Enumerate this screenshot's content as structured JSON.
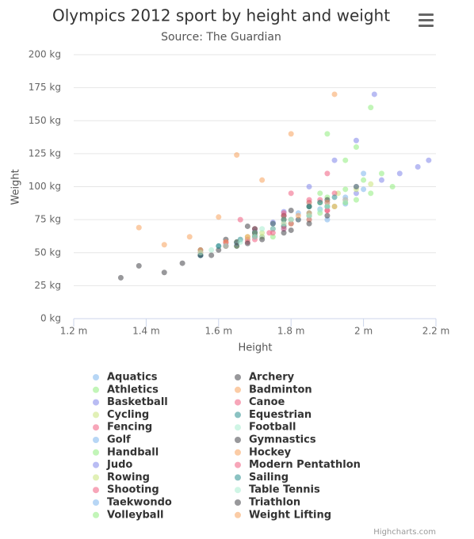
{
  "chart_data": {
    "type": "scatter",
    "title": "Olympics 2012 sport by height and weight",
    "subtitle": "Source: The Guardian",
    "x_label": "Height",
    "y_label": "Weight",
    "credits": "Highcharts.com",
    "xlim": [
      1.2,
      2.2
    ],
    "ylim": [
      0,
      200
    ],
    "xticks": [
      {
        "value": 1.2,
        "label": "1.2 m"
      },
      {
        "value": 1.4,
        "label": "1.4 m"
      },
      {
        "value": 1.6,
        "label": "1.6 m"
      },
      {
        "value": 1.8,
        "label": "1.8 m"
      },
      {
        "value": 2,
        "label": "2 m"
      },
      {
        "value": 2.2,
        "label": "2.2 m"
      }
    ],
    "yticks": [
      {
        "value": 0,
        "label": "0 kg"
      },
      {
        "value": 25,
        "label": "25 kg"
      },
      {
        "value": 50,
        "label": "50 kg"
      },
      {
        "value": 75,
        "label": "75 kg"
      },
      {
        "value": 100,
        "label": "100 kg"
      },
      {
        "value": 125,
        "label": "125 kg"
      },
      {
        "value": 150,
        "label": "150 kg"
      },
      {
        "value": 175,
        "label": "175 kg"
      },
      {
        "value": 200,
        "label": "200 kg"
      }
    ],
    "grid": true,
    "series": [
      {
        "name": "Aquatics",
        "color": "#7cb5ec",
        "x": [
          1.72,
          1.8,
          1.85,
          1.9,
          1.95,
          1.78,
          1.88,
          2.0
        ],
        "values": [
          62,
          72,
          80,
          85,
          92,
          68,
          83,
          98
        ]
      },
      {
        "name": "Athletics",
        "color": "#90ed7d",
        "x": [
          1.55,
          1.65,
          1.75,
          1.85,
          1.95,
          1.9,
          1.98,
          2.02
        ],
        "values": [
          48,
          55,
          68,
          80,
          120,
          140,
          130,
          160
        ]
      },
      {
        "name": "Basketball",
        "color": "#8085e9",
        "x": [
          1.8,
          1.9,
          1.98,
          2.05,
          2.1,
          2.15,
          2.18,
          2.03
        ],
        "values": [
          75,
          88,
          95,
          105,
          110,
          115,
          120,
          170
        ]
      },
      {
        "name": "Cycling",
        "color": "#c9e47a",
        "x": [
          1.6,
          1.68,
          1.75,
          1.8,
          1.85,
          1.9,
          1.72,
          1.78
        ],
        "values": [
          55,
          62,
          68,
          72,
          78,
          85,
          65,
          75
        ]
      },
      {
        "name": "Fencing",
        "color": "#f15c80",
        "x": [
          1.62,
          1.7,
          1.78,
          1.85,
          1.9,
          1.95,
          1.74,
          1.82
        ],
        "values": [
          55,
          62,
          70,
          78,
          82,
          90,
          65,
          75
        ]
      },
      {
        "name": "Golf",
        "color": "#7cb5ec",
        "x": [
          1.6,
          1.68,
          1.75,
          1.82,
          1.88,
          1.65,
          1.78,
          1.85
        ],
        "values": [
          55,
          60,
          72,
          80,
          88,
          58,
          75,
          85
        ]
      },
      {
        "name": "Handball",
        "color": "#90ed7d",
        "x": [
          1.7,
          1.78,
          1.85,
          1.9,
          1.95,
          2.0,
          2.05,
          1.88
        ],
        "values": [
          65,
          78,
          88,
          92,
          98,
          105,
          110,
          95
        ]
      },
      {
        "name": "Judo",
        "color": "#8085e9",
        "x": [
          1.55,
          1.62,
          1.7,
          1.78,
          1.85,
          1.92,
          1.98,
          1.75
        ],
        "values": [
          48,
          57,
          66,
          81,
          100,
          120,
          135,
          73
        ]
      },
      {
        "name": "Rowing",
        "color": "#c9e47a",
        "x": [
          1.65,
          1.72,
          1.8,
          1.88,
          1.93,
          1.98,
          2.02,
          1.85
        ],
        "values": [
          58,
          62,
          72,
          88,
          95,
          98,
          102,
          85
        ]
      },
      {
        "name": "Shooting",
        "color": "#f15c80",
        "x": [
          1.55,
          1.62,
          1.7,
          1.78,
          1.85,
          1.9,
          1.66,
          1.8
        ],
        "values": [
          50,
          58,
          68,
          80,
          90,
          110,
          75,
          95
        ]
      },
      {
        "name": "Taekwondo",
        "color": "#7cb5ec",
        "x": [
          1.55,
          1.65,
          1.75,
          1.85,
          1.95,
          2.0,
          1.7,
          1.9
        ],
        "values": [
          48,
          57,
          68,
          80,
          87,
          110,
          63,
          75
        ]
      },
      {
        "name": "Volleyball",
        "color": "#90ed7d",
        "x": [
          1.75,
          1.85,
          1.92,
          1.98,
          2.02,
          2.08,
          1.88,
          1.95
        ],
        "values": [
          62,
          75,
          85,
          90,
          95,
          100,
          80,
          88
        ]
      },
      {
        "name": "Archery",
        "color": "#434348",
        "x": [
          1.55,
          1.62,
          1.7,
          1.78,
          1.85,
          1.9,
          1.68,
          1.8
        ],
        "values": [
          52,
          60,
          68,
          78,
          85,
          90,
          70,
          82
        ]
      },
      {
        "name": "Badminton",
        "color": "#f7a35c",
        "x": [
          1.55,
          1.62,
          1.7,
          1.78,
          1.85,
          1.92,
          1.68,
          1.8
        ],
        "values": [
          50,
          55,
          63,
          72,
          78,
          85,
          60,
          75
        ]
      },
      {
        "name": "Canoe",
        "color": "#f15c80",
        "x": [
          1.62,
          1.7,
          1.78,
          1.85,
          1.92,
          1.98,
          1.75,
          1.88
        ],
        "values": [
          58,
          65,
          78,
          88,
          95,
          100,
          72,
          90
        ]
      },
      {
        "name": "Equestrian",
        "color": "#2b908f",
        "x": [
          1.55,
          1.62,
          1.7,
          1.78,
          1.85,
          1.9,
          1.66,
          1.82
        ],
        "values": [
          48,
          55,
          62,
          70,
          78,
          85,
          60,
          75
        ]
      },
      {
        "name": "Football",
        "color": "#a8ecd0",
        "x": [
          1.58,
          1.65,
          1.72,
          1.8,
          1.88,
          1.95,
          1.7,
          1.85
        ],
        "values": [
          52,
          58,
          68,
          75,
          82,
          90,
          65,
          78
        ]
      },
      {
        "name": "Gymnastics",
        "color": "#434348",
        "x": [
          1.33,
          1.38,
          1.45,
          1.5,
          1.55,
          1.6,
          1.65,
          1.7
        ],
        "values": [
          31,
          40,
          35,
          42,
          48,
          52,
          58,
          65
        ]
      },
      {
        "name": "Hockey",
        "color": "#f7a35c",
        "x": [
          1.55,
          1.62,
          1.7,
          1.78,
          1.85,
          1.9,
          1.68,
          1.82
        ],
        "values": [
          52,
          58,
          65,
          75,
          80,
          88,
          62,
          78
        ]
      },
      {
        "name": "Modern Pentathlon",
        "color": "#f15c80",
        "x": [
          1.62,
          1.7,
          1.78,
          1.85,
          1.9,
          1.68,
          1.8,
          1.75
        ],
        "values": [
          55,
          60,
          68,
          75,
          82,
          58,
          72,
          65
        ]
      },
      {
        "name": "Sailing",
        "color": "#2b908f",
        "x": [
          1.6,
          1.7,
          1.78,
          1.85,
          1.92,
          1.98,
          1.75,
          1.88
        ],
        "values": [
          55,
          65,
          75,
          85,
          92,
          100,
          72,
          88
        ]
      },
      {
        "name": "Table Tennis",
        "color": "#a8ecd0",
        "x": [
          1.55,
          1.62,
          1.7,
          1.78,
          1.85,
          1.9,
          1.66,
          1.8
        ],
        "values": [
          50,
          55,
          62,
          72,
          78,
          85,
          58,
          75
        ]
      },
      {
        "name": "Triathlon",
        "color": "#434348",
        "x": [
          1.58,
          1.65,
          1.72,
          1.8,
          1.85,
          1.9,
          1.68,
          1.78
        ],
        "values": [
          48,
          55,
          60,
          67,
          72,
          78,
          57,
          65
        ]
      },
      {
        "name": "Weight Lifting",
        "color": "#f7a35c",
        "x": [
          1.38,
          1.45,
          1.52,
          1.6,
          1.65,
          1.72,
          1.8,
          1.92
        ],
        "values": [
          69,
          56,
          62,
          77,
          124,
          105,
          140,
          170
        ]
      }
    ]
  }
}
